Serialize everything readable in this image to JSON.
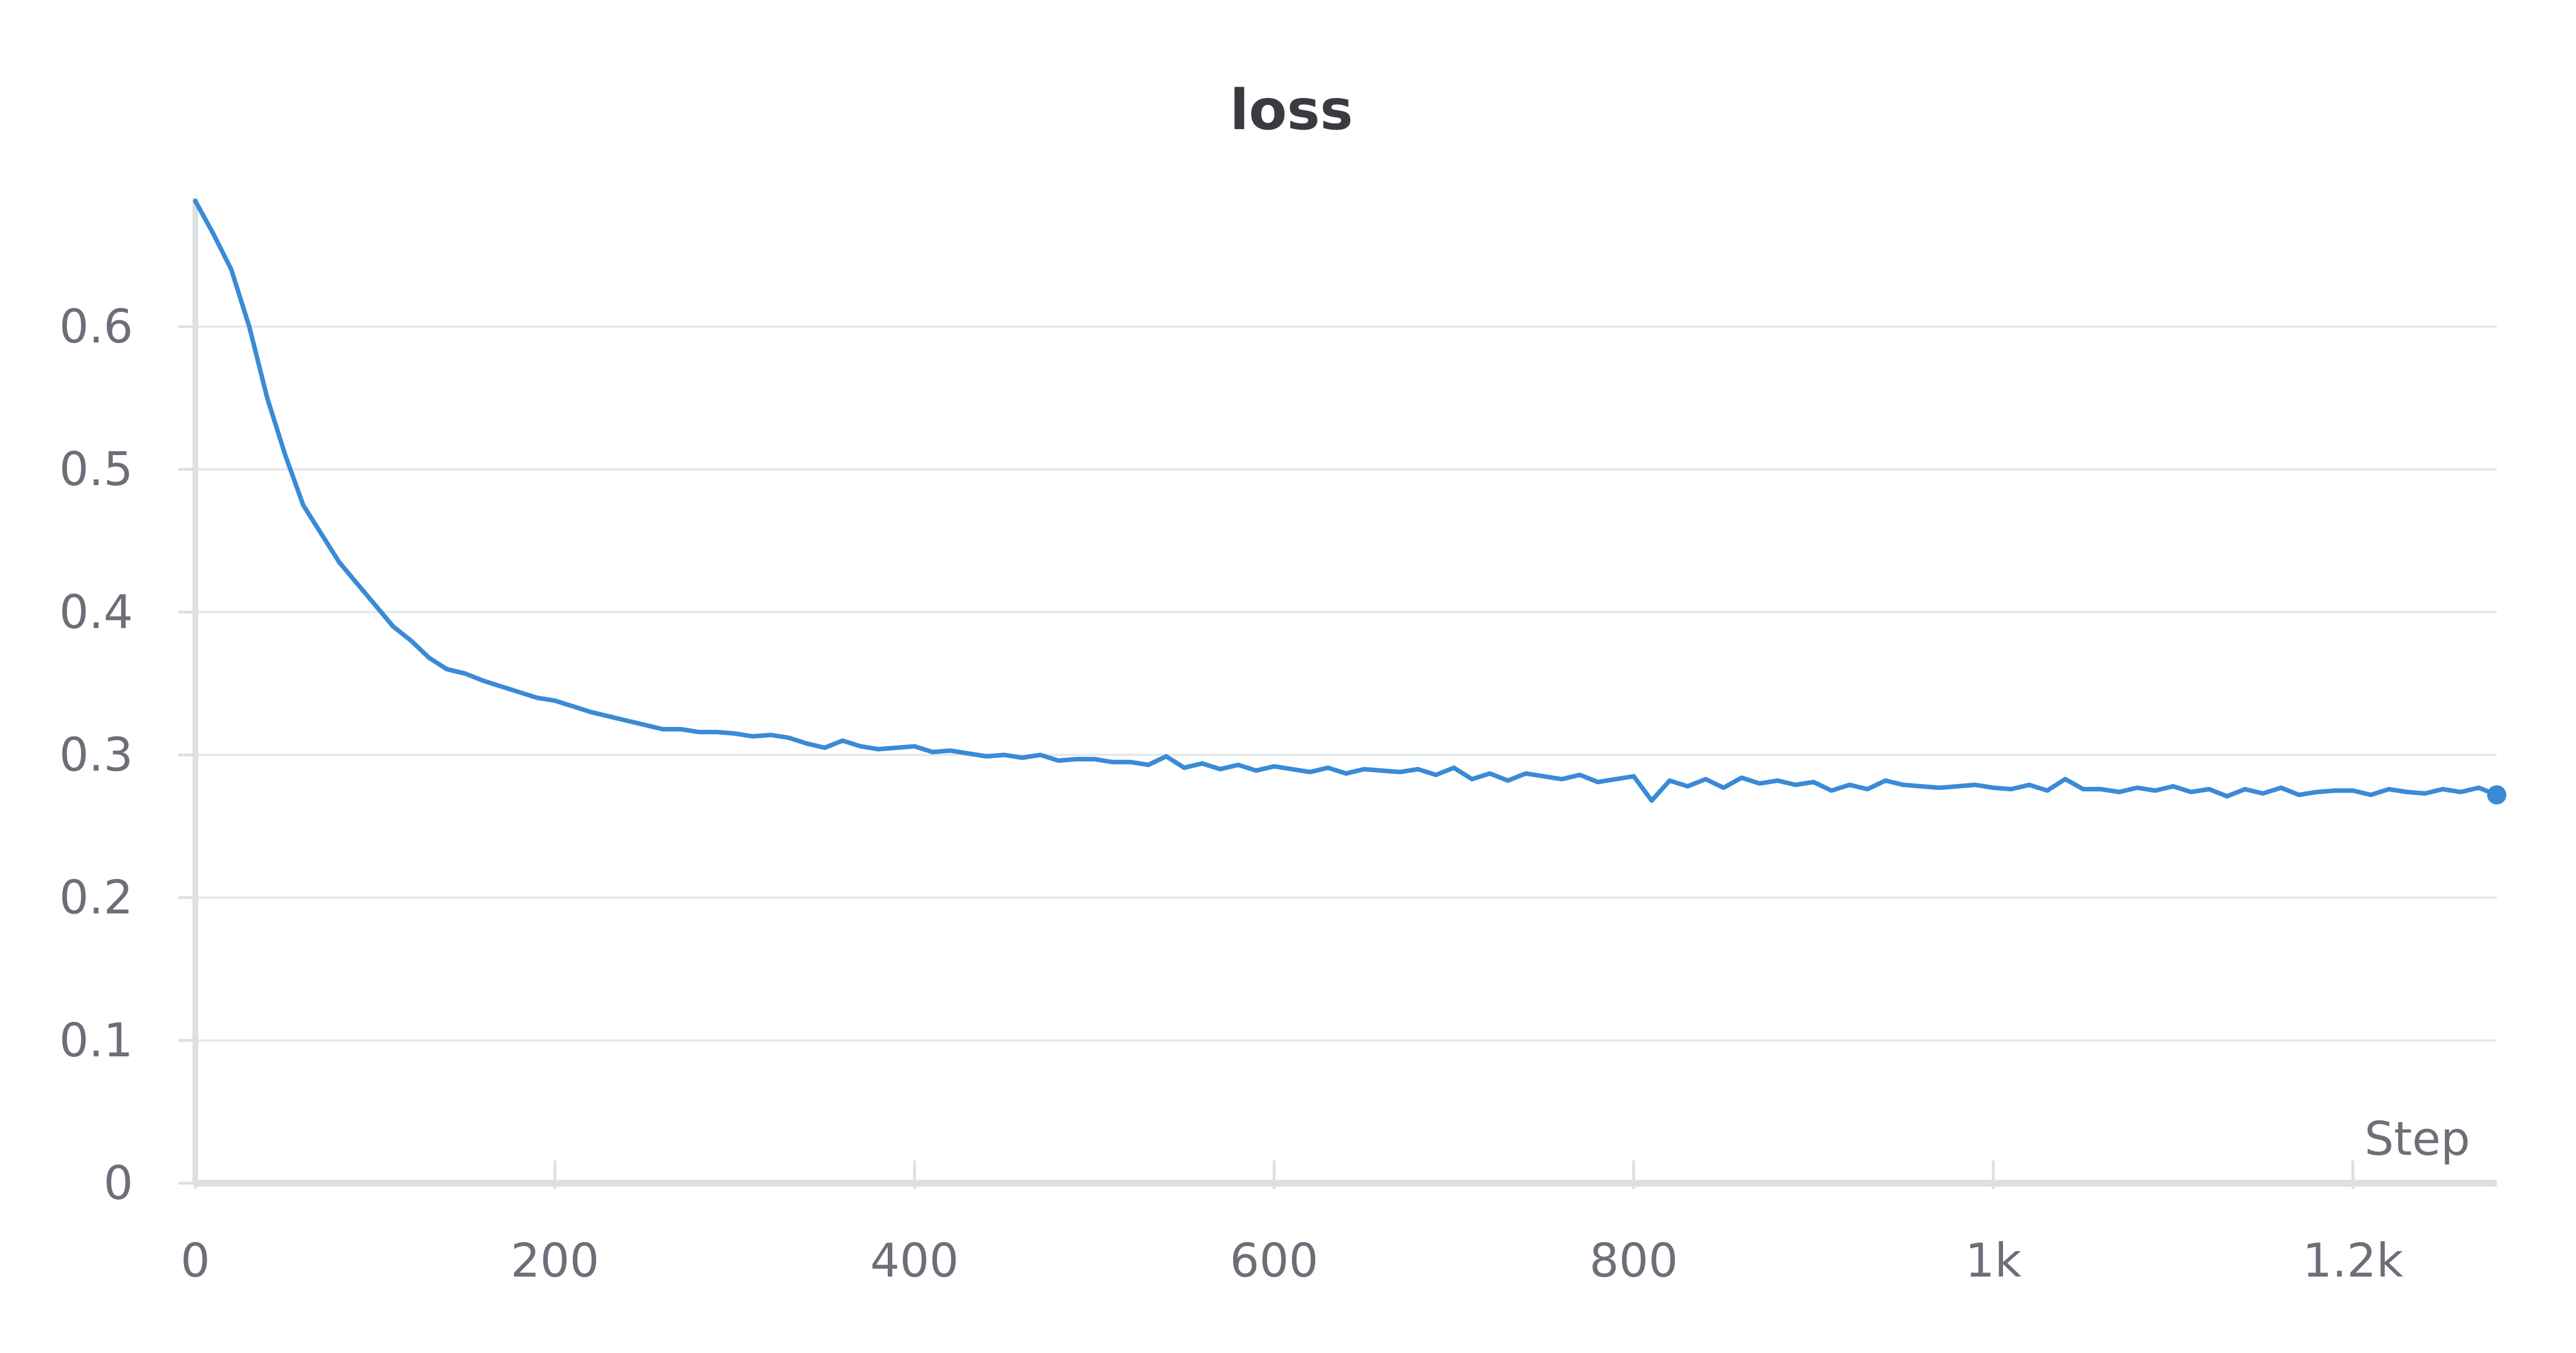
{
  "chart_data": {
    "type": "line",
    "title": "loss",
    "xlabel": "Step",
    "ylabel": "",
    "xlim": [
      0,
      1280
    ],
    "ylim": [
      0,
      0.69
    ],
    "x_ticks": [
      0,
      200,
      400,
      600,
      800,
      1000,
      1200
    ],
    "x_tick_labels": [
      "0",
      "200",
      "400",
      "600",
      "800",
      "1k",
      "1.2k"
    ],
    "y_ticks": [
      0,
      0.1,
      0.2,
      0.3,
      0.4,
      0.5,
      0.6
    ],
    "y_tick_labels": [
      "0",
      "0.1",
      "0.2",
      "0.3",
      "0.4",
      "0.5",
      "0.6"
    ],
    "grid": "horizontal",
    "legend": "none",
    "colors": {
      "line": "#3a8bd6",
      "grid": "#e6e7ea",
      "axis": "#dedfe2",
      "tick_text": "#6c6f78",
      "title": "#3a3b40"
    },
    "series": [
      {
        "x": [
          0,
          10,
          20,
          30,
          40,
          50,
          60,
          70,
          80,
          90,
          100,
          110,
          120,
          130,
          140,
          150,
          160,
          170,
          180,
          190,
          200,
          210,
          220,
          230,
          240,
          250,
          260,
          270,
          280,
          290,
          300,
          310,
          320,
          330,
          340,
          350,
          360,
          370,
          380,
          390,
          400,
          410,
          420,
          430,
          440,
          450,
          460,
          470,
          480,
          490,
          500,
          510,
          520,
          530,
          540,
          550,
          560,
          570,
          580,
          590,
          600,
          610,
          620,
          630,
          640,
          650,
          660,
          670,
          680,
          690,
          700,
          710,
          720,
          730,
          740,
          750,
          760,
          770,
          780,
          790,
          800,
          810,
          820,
          830,
          840,
          850,
          860,
          870,
          880,
          890,
          900,
          910,
          920,
          930,
          940,
          950,
          960,
          970,
          980,
          990,
          1000,
          1010,
          1020,
          1030,
          1040,
          1050,
          1060,
          1070,
          1080,
          1090,
          1100,
          1110,
          1120,
          1130,
          1140,
          1150,
          1160,
          1170,
          1180,
          1190,
          1200,
          1210,
          1220,
          1230,
          1240,
          1250,
          1260,
          1270,
          1280
        ],
        "y": [
          0.688,
          0.665,
          0.64,
          0.6,
          0.55,
          0.51,
          0.475,
          0.455,
          0.435,
          0.42,
          0.405,
          0.39,
          0.38,
          0.368,
          0.36,
          0.357,
          0.352,
          0.348,
          0.344,
          0.34,
          0.338,
          0.334,
          0.33,
          0.327,
          0.324,
          0.321,
          0.318,
          0.318,
          0.316,
          0.316,
          0.315,
          0.313,
          0.314,
          0.312,
          0.308,
          0.305,
          0.31,
          0.306,
          0.304,
          0.305,
          0.306,
          0.302,
          0.303,
          0.301,
          0.299,
          0.3,
          0.298,
          0.3,
          0.296,
          0.297,
          0.297,
          0.295,
          0.295,
          0.293,
          0.299,
          0.291,
          0.294,
          0.29,
          0.293,
          0.289,
          0.292,
          0.29,
          0.288,
          0.291,
          0.287,
          0.29,
          0.289,
          0.288,
          0.29,
          0.286,
          0.291,
          0.283,
          0.287,
          0.282,
          0.287,
          0.285,
          0.283,
          0.286,
          0.281,
          0.283,
          0.285,
          0.268,
          0.282,
          0.278,
          0.283,
          0.277,
          0.284,
          0.28,
          0.282,
          0.279,
          0.281,
          0.275,
          0.279,
          0.276,
          0.282,
          0.279,
          0.278,
          0.277,
          0.278,
          0.279,
          0.277,
          0.276,
          0.279,
          0.275,
          0.283,
          0.276,
          0.276,
          0.274,
          0.277,
          0.275,
          0.278,
          0.274,
          0.276,
          0.271,
          0.276,
          0.273,
          0.277,
          0.272,
          0.274,
          0.275,
          0.275,
          0.272,
          0.276,
          0.274,
          0.273,
          0.276,
          0.274,
          0.277,
          0.272
        ]
      }
    ]
  }
}
